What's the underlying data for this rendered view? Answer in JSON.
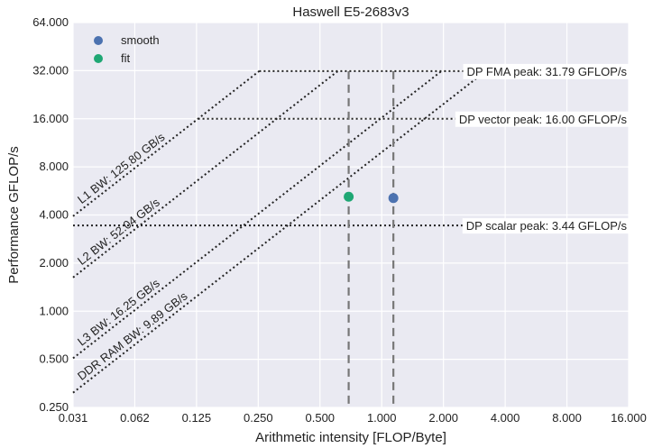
{
  "chart_data": {
    "type": "scatter",
    "title": "Haswell E5-2683v3",
    "xlabel": "Arithmetic intensity [FLOP/Byte]",
    "ylabel": "Performance GFLOP/s",
    "xscale": "log2",
    "yscale": "log2",
    "xlim": [
      0.03125,
      16
    ],
    "ylim": [
      0.25,
      64
    ],
    "x_ticks": [
      0.03125,
      0.0625,
      0.125,
      0.25,
      0.5,
      1,
      2,
      4,
      8,
      16
    ],
    "x_tick_labels": [
      "0.031",
      "0.062",
      "0.125",
      "0.250",
      "0.500",
      "1.000",
      "2.000",
      "4.000",
      "8.000",
      "16.000"
    ],
    "y_ticks": [
      0.25,
      0.5,
      1,
      2,
      4,
      8,
      16,
      32,
      64
    ],
    "y_tick_labels": [
      "0.250",
      "0.500",
      "1.000",
      "2.000",
      "4.000",
      "8.000",
      "16.000",
      "32.000",
      "64.000"
    ],
    "grid": true,
    "legend_position": "top-left",
    "series": [
      {
        "name": "smooth",
        "color": "#4c72b0",
        "points": [
          {
            "x": 1.14,
            "y": 5.1
          }
        ]
      },
      {
        "name": "fit",
        "color": "#1fa774",
        "points": [
          {
            "x": 0.69,
            "y": 5.2
          }
        ]
      }
    ],
    "vertical_lines": [
      0.69,
      1.14
    ],
    "peaks": [
      {
        "label": "DP FMA peak: 31.79 GFLOP/s",
        "value": 31.79
      },
      {
        "label": "DP vector peak: 16.00 GFLOP/s",
        "value": 16.0
      },
      {
        "label": "DP scalar peak: 3.44 GFLOP/s",
        "value": 3.44
      }
    ],
    "bandwidths": [
      {
        "label": "L1 BW: 125.80 GB/s",
        "value": 125.8
      },
      {
        "label": "L2 BW: 52.04 GB/s",
        "value": 52.04
      },
      {
        "label": "L3 BW: 16.25 GB/s",
        "value": 16.25
      },
      {
        "label": "DDR RAM BW: 9.89 GB/s",
        "value": 9.89
      }
    ]
  }
}
